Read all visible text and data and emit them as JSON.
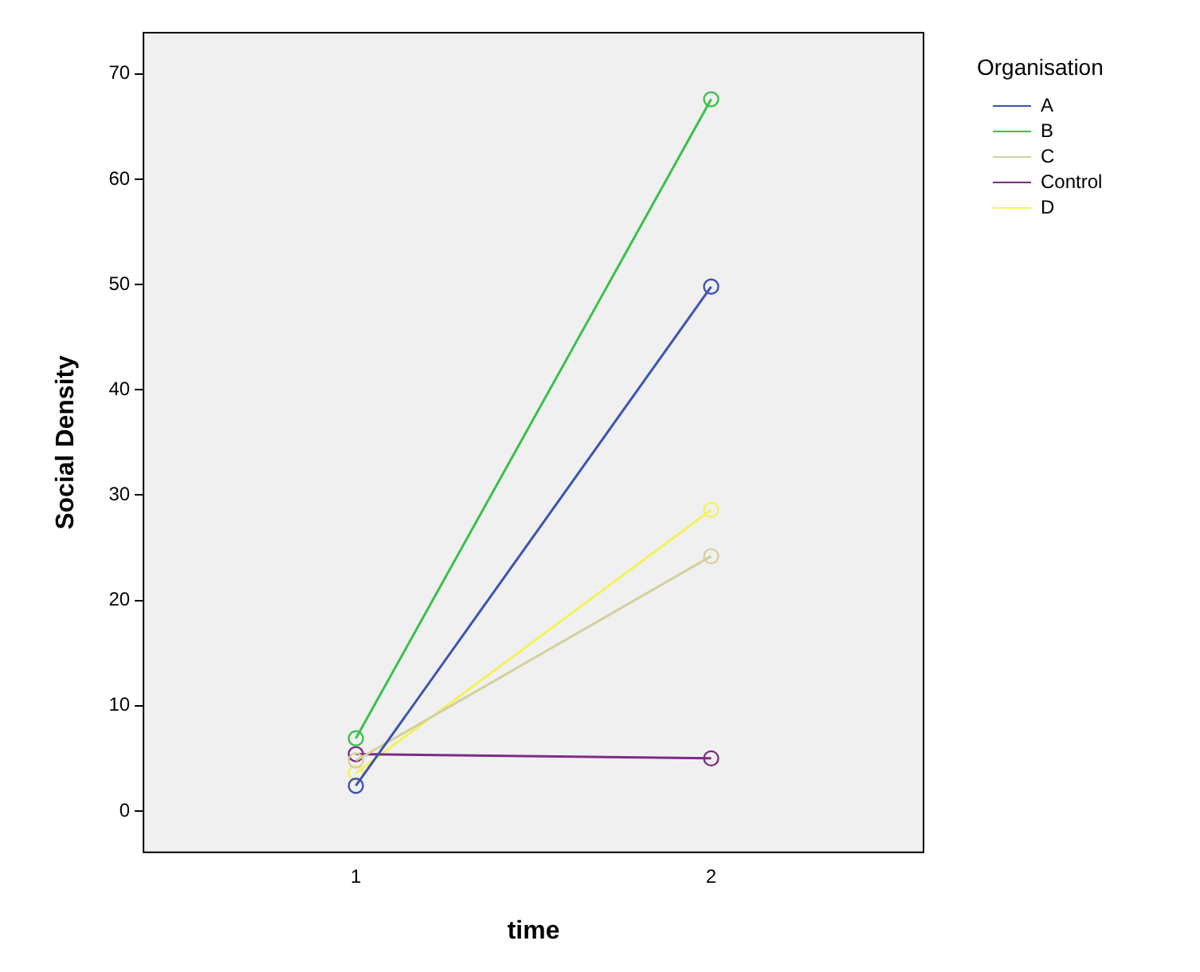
{
  "chart_data": {
    "type": "line",
    "xlabel": "time",
    "ylabel": "Social Density",
    "legend_title": "Organisation",
    "x": [
      1,
      2
    ],
    "series": [
      {
        "name": "A",
        "color": "#3e53b0",
        "values": [
          2.4,
          49.8
        ]
      },
      {
        "name": "B",
        "color": "#3cbf4a",
        "values": [
          6.9,
          67.6
        ]
      },
      {
        "name": "C",
        "color": "#d4cf9e",
        "values": [
          4.8,
          24.2
        ]
      },
      {
        "name": "Control",
        "color": "#7e2a86",
        "values": [
          5.4,
          5.0
        ]
      },
      {
        "name": "D",
        "color": "#f2f25c",
        "values": [
          3.6,
          28.6
        ]
      }
    ],
    "xlim": [
      0.4,
      2.6
    ],
    "xticks": [
      1,
      2
    ],
    "ylim": [
      -4,
      74
    ],
    "yticks": [
      0,
      10,
      20,
      30,
      40,
      50,
      60,
      70
    ],
    "grid": false,
    "legend": "top right",
    "marker": "circle",
    "line_style": "solid"
  }
}
